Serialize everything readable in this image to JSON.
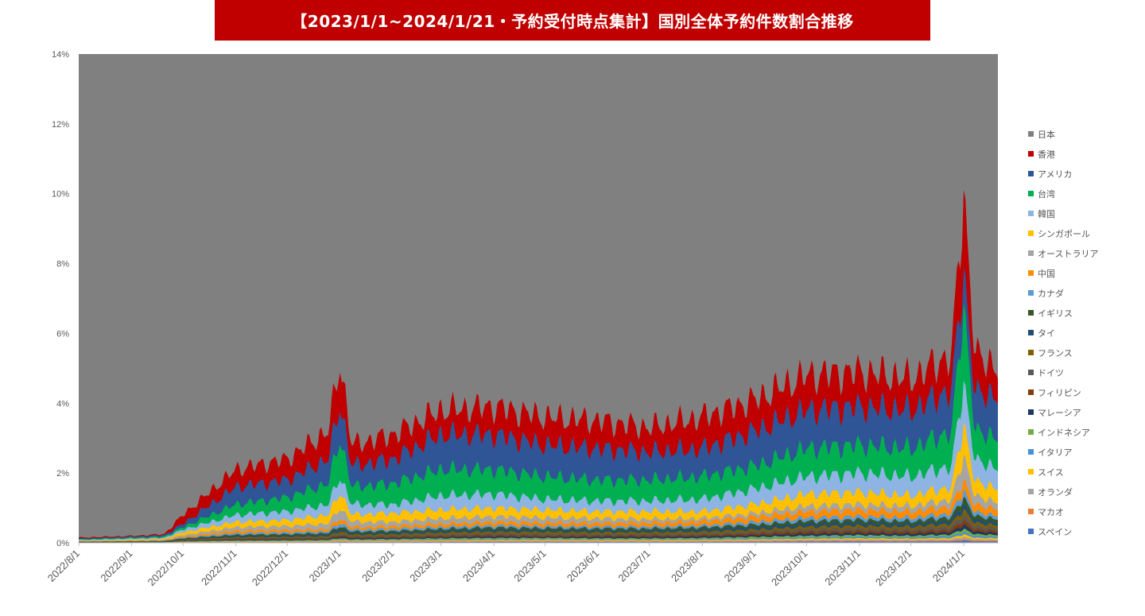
{
  "title": "【2023/1/1~2024/1/21・予約受付時点集計】国別全体予約件数割合推移",
  "chart_data": {
    "type": "area",
    "stacked": true,
    "title": "【2023/1/1~2024/1/21・予約受付時点集計】国別全体予約件数割合推移",
    "xlabel": "",
    "ylabel": "",
    "ylim": [
      0,
      14
    ],
    "yunit": "%",
    "yticks": [
      "0%",
      "2%",
      "4%",
      "6%",
      "8%",
      "10%",
      "12%",
      "14%"
    ],
    "xticks": [
      "2022/8/1",
      "2022/9/1",
      "2022/10/1",
      "2022/11/1",
      "2022/12/1",
      "2023/1/1",
      "2023/2/1",
      "2023/3/1",
      "2023/4/1",
      "2023/5/1",
      "2023/6/1",
      "2023/7/1",
      "2023/8/1",
      "2023/9/1",
      "2023/10/1",
      "2023/11/1",
      "2023/12/1",
      "2024/1/1"
    ],
    "x_range": [
      "2022/8/1",
      "2024/1/21"
    ],
    "legend_position": "right",
    "grid": false,
    "note": "Values are cumulative stacked share (%) at monthly anchor dates, read off the chart; the first series (日本) fills the remainder up to 100%.",
    "anchor_dates": [
      "2022/8/1",
      "2022/9/1",
      "2022/9/20",
      "2022/10/1",
      "2022/11/1",
      "2022/12/1",
      "2022/12/25",
      "2023/1/1",
      "2023/1/8",
      "2023/2/1",
      "2023/3/1",
      "2023/4/1",
      "2023/5/1",
      "2023/6/1",
      "2023/7/1",
      "2023/8/1",
      "2023/9/1",
      "2023/10/1",
      "2023/11/1",
      "2023/12/1",
      "2023/12/25",
      "2024/1/1",
      "2024/1/8",
      "2024/1/21"
    ],
    "series": [
      {
        "name": "日本",
        "color": "#808080"
      },
      {
        "name": "香港",
        "color": "#c00000",
        "cumulative": [
          0.15,
          0.2,
          0.25,
          0.8,
          2.1,
          2.4,
          3.2,
          5.2,
          2.8,
          3.1,
          3.8,
          3.9,
          3.6,
          3.5,
          3.3,
          3.6,
          4.1,
          4.8,
          4.9,
          4.7,
          5.4,
          10.0,
          5.3,
          5.1
        ]
      },
      {
        "name": "アメリカ",
        "color": "#2f5597",
        "cumulative": [
          0.12,
          0.18,
          0.22,
          0.55,
          1.6,
          1.8,
          2.4,
          4.0,
          2.2,
          2.4,
          3.1,
          3.1,
          2.8,
          2.7,
          2.6,
          2.7,
          3.2,
          3.8,
          3.9,
          3.8,
          4.4,
          7.8,
          4.2,
          4.3
        ]
      },
      {
        "name": "台湾",
        "color": "#00b050",
        "cumulative": [
          0.1,
          0.15,
          0.18,
          0.45,
          1.1,
          1.3,
          1.7,
          3.0,
          1.6,
          1.7,
          2.1,
          2.1,
          1.9,
          1.8,
          1.8,
          1.9,
          2.2,
          2.7,
          2.8,
          2.7,
          3.2,
          6.8,
          3.1,
          3.1
        ]
      },
      {
        "name": "韓国",
        "color": "#8db4e2",
        "cumulative": [
          0.08,
          0.12,
          0.15,
          0.38,
          0.8,
          0.9,
          1.1,
          1.9,
          1.1,
          1.1,
          1.35,
          1.4,
          1.25,
          1.2,
          1.2,
          1.25,
          1.55,
          1.9,
          2.0,
          1.9,
          2.2,
          4.6,
          2.3,
          2.2
        ]
      },
      {
        "name": "シンガポール",
        "color": "#ffc000",
        "cumulative": [
          0.06,
          0.09,
          0.12,
          0.3,
          0.6,
          0.65,
          0.8,
          1.45,
          0.8,
          0.85,
          0.95,
          1.0,
          0.95,
          0.9,
          0.9,
          0.9,
          1.1,
          1.4,
          1.45,
          1.35,
          1.6,
          3.4,
          1.7,
          1.6
        ]
      },
      {
        "name": "オーストラリア",
        "color": "#a5a5a5",
        "cumulative": [
          0.05,
          0.07,
          0.09,
          0.22,
          0.45,
          0.48,
          0.55,
          1.0,
          0.6,
          0.6,
          0.7,
          0.75,
          0.72,
          0.7,
          0.68,
          0.7,
          0.85,
          1.05,
          1.1,
          1.05,
          1.25,
          2.5,
          1.3,
          1.2
        ]
      },
      {
        "name": "中国",
        "color": "#ff8c00",
        "cumulative": [
          0.04,
          0.06,
          0.07,
          0.18,
          0.35,
          0.37,
          0.4,
          0.7,
          0.45,
          0.48,
          0.55,
          0.6,
          0.58,
          0.57,
          0.58,
          0.62,
          0.75,
          0.9,
          0.95,
          0.9,
          1.05,
          1.8,
          1.05,
          1.0
        ]
      },
      {
        "name": "カナダ",
        "color": "#5b9bd5",
        "cumulative": [
          0.035,
          0.05,
          0.06,
          0.15,
          0.28,
          0.3,
          0.33,
          0.58,
          0.38,
          0.4,
          0.46,
          0.5,
          0.48,
          0.47,
          0.47,
          0.5,
          0.6,
          0.72,
          0.76,
          0.72,
          0.85,
          1.5,
          0.85,
          0.8
        ]
      },
      {
        "name": "イギリス",
        "color": "#385723",
        "cumulative": [
          0.03,
          0.045,
          0.05,
          0.13,
          0.23,
          0.25,
          0.28,
          0.48,
          0.32,
          0.34,
          0.4,
          0.44,
          0.42,
          0.41,
          0.41,
          0.44,
          0.52,
          0.62,
          0.66,
          0.62,
          0.74,
          1.3,
          0.74,
          0.7
        ]
      },
      {
        "name": "タイ",
        "color": "#1f4e79",
        "cumulative": [
          0.025,
          0.04,
          0.045,
          0.11,
          0.19,
          0.2,
          0.23,
          0.4,
          0.27,
          0.29,
          0.34,
          0.38,
          0.36,
          0.35,
          0.35,
          0.38,
          0.45,
          0.54,
          0.57,
          0.54,
          0.64,
          1.1,
          0.64,
          0.6
        ]
      },
      {
        "name": "フランス",
        "color": "#7f6000",
        "cumulative": [
          0.02,
          0.035,
          0.04,
          0.095,
          0.16,
          0.17,
          0.19,
          0.33,
          0.23,
          0.25,
          0.29,
          0.32,
          0.31,
          0.3,
          0.3,
          0.32,
          0.38,
          0.46,
          0.49,
          0.46,
          0.55,
          0.95,
          0.55,
          0.52
        ]
      },
      {
        "name": "ドイツ",
        "color": "#595959",
        "cumulative": [
          0.018,
          0.03,
          0.035,
          0.08,
          0.13,
          0.14,
          0.16,
          0.27,
          0.19,
          0.21,
          0.24,
          0.27,
          0.26,
          0.25,
          0.25,
          0.27,
          0.32,
          0.39,
          0.41,
          0.39,
          0.46,
          0.8,
          0.46,
          0.44
        ]
      },
      {
        "name": "フィリピン",
        "color": "#843c0c",
        "cumulative": [
          0.015,
          0.025,
          0.03,
          0.065,
          0.11,
          0.12,
          0.13,
          0.22,
          0.16,
          0.17,
          0.2,
          0.22,
          0.21,
          0.21,
          0.21,
          0.22,
          0.27,
          0.32,
          0.34,
          0.32,
          0.38,
          0.65,
          0.38,
          0.36
        ]
      },
      {
        "name": "マレーシア",
        "color": "#203864",
        "cumulative": [
          0.012,
          0.02,
          0.025,
          0.055,
          0.09,
          0.095,
          0.105,
          0.18,
          0.13,
          0.14,
          0.16,
          0.18,
          0.17,
          0.17,
          0.17,
          0.18,
          0.22,
          0.26,
          0.28,
          0.26,
          0.31,
          0.52,
          0.31,
          0.3
        ]
      },
      {
        "name": "インドネシア",
        "color": "#70ad47",
        "cumulative": [
          0.01,
          0.016,
          0.02,
          0.045,
          0.07,
          0.075,
          0.085,
          0.14,
          0.1,
          0.11,
          0.13,
          0.14,
          0.14,
          0.13,
          0.13,
          0.14,
          0.17,
          0.2,
          0.22,
          0.2,
          0.24,
          0.4,
          0.24,
          0.23
        ]
      },
      {
        "name": "イタリア",
        "color": "#4a90d9",
        "cumulative": [
          0.008,
          0.013,
          0.016,
          0.035,
          0.055,
          0.058,
          0.065,
          0.11,
          0.08,
          0.085,
          0.1,
          0.11,
          0.11,
          0.1,
          0.1,
          0.11,
          0.13,
          0.16,
          0.17,
          0.16,
          0.19,
          0.31,
          0.19,
          0.18
        ]
      },
      {
        "name": "スイス",
        "color": "#ffc000",
        "cumulative": [
          0.006,
          0.01,
          0.012,
          0.027,
          0.042,
          0.044,
          0.05,
          0.085,
          0.06,
          0.065,
          0.075,
          0.085,
          0.085,
          0.08,
          0.08,
          0.085,
          0.1,
          0.12,
          0.13,
          0.12,
          0.14,
          0.24,
          0.14,
          0.14
        ]
      },
      {
        "name": "オランダ",
        "color": "#a5a5a5",
        "cumulative": [
          0.004,
          0.007,
          0.009,
          0.02,
          0.03,
          0.032,
          0.036,
          0.06,
          0.044,
          0.047,
          0.055,
          0.062,
          0.062,
          0.058,
          0.058,
          0.062,
          0.072,
          0.088,
          0.094,
          0.088,
          0.1,
          0.17,
          0.1,
          0.1
        ]
      },
      {
        "name": "マカオ",
        "color": "#ed7d31",
        "cumulative": [
          0.003,
          0.005,
          0.006,
          0.013,
          0.02,
          0.021,
          0.024,
          0.04,
          0.029,
          0.031,
          0.036,
          0.04,
          0.04,
          0.038,
          0.038,
          0.04,
          0.047,
          0.057,
          0.061,
          0.057,
          0.066,
          0.11,
          0.066,
          0.065
        ]
      },
      {
        "name": "スペイン",
        "color": "#4472c4",
        "cumulative": [
          0.002,
          0.003,
          0.004,
          0.008,
          0.012,
          0.013,
          0.015,
          0.025,
          0.018,
          0.019,
          0.022,
          0.025,
          0.025,
          0.024,
          0.024,
          0.025,
          0.029,
          0.035,
          0.038,
          0.035,
          0.041,
          0.07,
          0.041,
          0.04
        ]
      }
    ]
  }
}
